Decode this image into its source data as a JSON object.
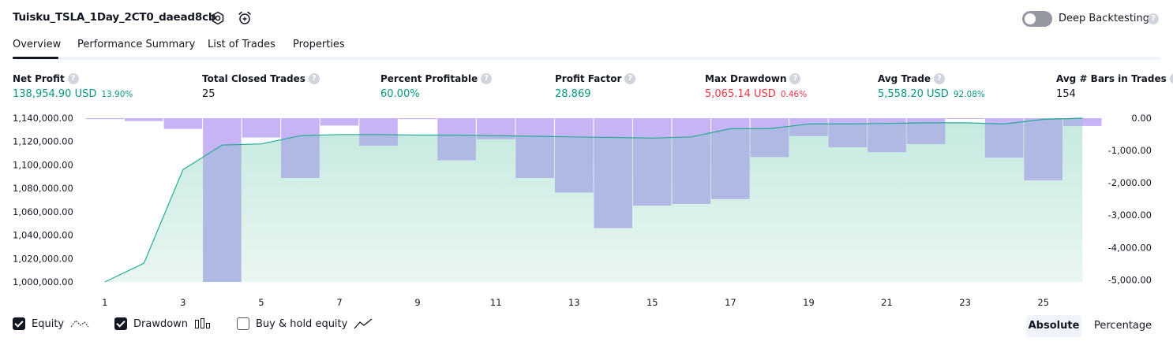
{
  "header": {
    "title": "Tuisku_TSLA_1Day_2CT0_daead8cb",
    "settings_icon": "settings-icon",
    "alarm_icon": "alarm-add-icon",
    "deep_backtesting_label": "Deep Backtesting",
    "deep_backtesting_enabled": false,
    "help_glyph": "?"
  },
  "tabs": [
    {
      "label": "Overview",
      "active": true
    },
    {
      "label": "Performance Summary",
      "active": false
    },
    {
      "label": "List of Trades",
      "active": false
    },
    {
      "label": "Properties",
      "active": false
    }
  ],
  "metrics": [
    {
      "label": "Net Profit",
      "value": "138,954.90 USD",
      "pct": "13.90%",
      "color": "green"
    },
    {
      "label": "Total Closed Trades",
      "value": "25",
      "pct": "",
      "color": "dark"
    },
    {
      "label": "Percent Profitable",
      "value": "60.00%",
      "pct": "",
      "color": "green"
    },
    {
      "label": "Profit Factor",
      "value": "28.869",
      "pct": "",
      "color": "green"
    },
    {
      "label": "Max Drawdown",
      "value": "5,065.14 USD",
      "pct": "0.46%",
      "color": "red"
    },
    {
      "label": "Avg Trade",
      "value": "5,558.20 USD",
      "pct": "92.08%",
      "color": "green"
    },
    {
      "label": "Avg # Bars in Trades",
      "value": "154",
      "pct": "",
      "color": "dark"
    }
  ],
  "legend": {
    "equity_label": "Equity",
    "equity_checked": true,
    "drawdown_label": "Drawdown",
    "drawdown_checked": true,
    "buyhold_label": "Buy & hold equity",
    "buyhold_checked": false
  },
  "view_toggle": {
    "absolute_label": "Absolute",
    "percentage_label": "Percentage",
    "selected": "Absolute"
  },
  "colors": {
    "equity_line": "#22ab94",
    "equity_fill_top": "#c5e9df",
    "equity_fill_bottom": "#eaf6f2",
    "drawdown_bar": "#c7b4f5",
    "drawdown_bar_over_fill": "#b0b9e3",
    "green": "#089981",
    "red": "#f23645"
  },
  "chart_data": {
    "type": "line",
    "x_tick_labels": [
      "1",
      "3",
      "5",
      "7",
      "9",
      "11",
      "13",
      "15",
      "17",
      "19",
      "21",
      "23",
      "25"
    ],
    "left_axis": {
      "tick_labels": [
        "1,140,000.00",
        "1,120,000.00",
        "1,100,000.00",
        "1,080,000.00",
        "1,060,000.00",
        "1,040,000.00",
        "1,020,000.00",
        "1,000,000.00"
      ],
      "range": [
        1000000,
        1140000
      ]
    },
    "right_axis": {
      "tick_labels": [
        "0.00",
        "-1,000.00",
        "-2,000.00",
        "-3,000.00",
        "-4,000.00",
        "-5,000.00"
      ],
      "range": [
        -5065.14,
        0
      ]
    },
    "series": [
      {
        "name": "Equity",
        "kind": "area-line",
        "x": [
          1,
          2,
          3,
          4,
          5,
          6,
          7,
          8,
          9,
          10,
          11,
          12,
          13,
          14,
          15,
          16,
          17,
          18,
          19,
          20,
          21,
          22,
          23,
          24,
          25,
          26
        ],
        "values": [
          1000000,
          1016000,
          1096000,
          1117000,
          1118000,
          1125000,
          1126000,
          1126000,
          1125500,
          1125500,
          1125000,
          1124500,
          1124000,
          1123500,
          1123000,
          1124000,
          1131000,
          1131000,
          1135000,
          1135000,
          1135500,
          1136000,
          1136000,
          1135000,
          1139000,
          1140000
        ]
      },
      {
        "name": "Drawdown",
        "kind": "bar",
        "x": [
          1,
          2,
          3,
          4,
          5,
          6,
          7,
          8,
          9,
          10,
          11,
          12,
          13,
          14,
          15,
          16,
          17,
          18,
          19,
          20,
          21,
          22,
          23,
          24,
          25,
          26
        ],
        "values": [
          -30,
          -90,
          -330,
          -5065,
          -600,
          -1850,
          -230,
          -850,
          -30,
          -1300,
          -650,
          -1850,
          -2300,
          -3400,
          -2700,
          -2650,
          -2500,
          -1200,
          -550,
          -900,
          -1050,
          -800,
          -10,
          -1220,
          -1920,
          -240
        ]
      }
    ]
  }
}
